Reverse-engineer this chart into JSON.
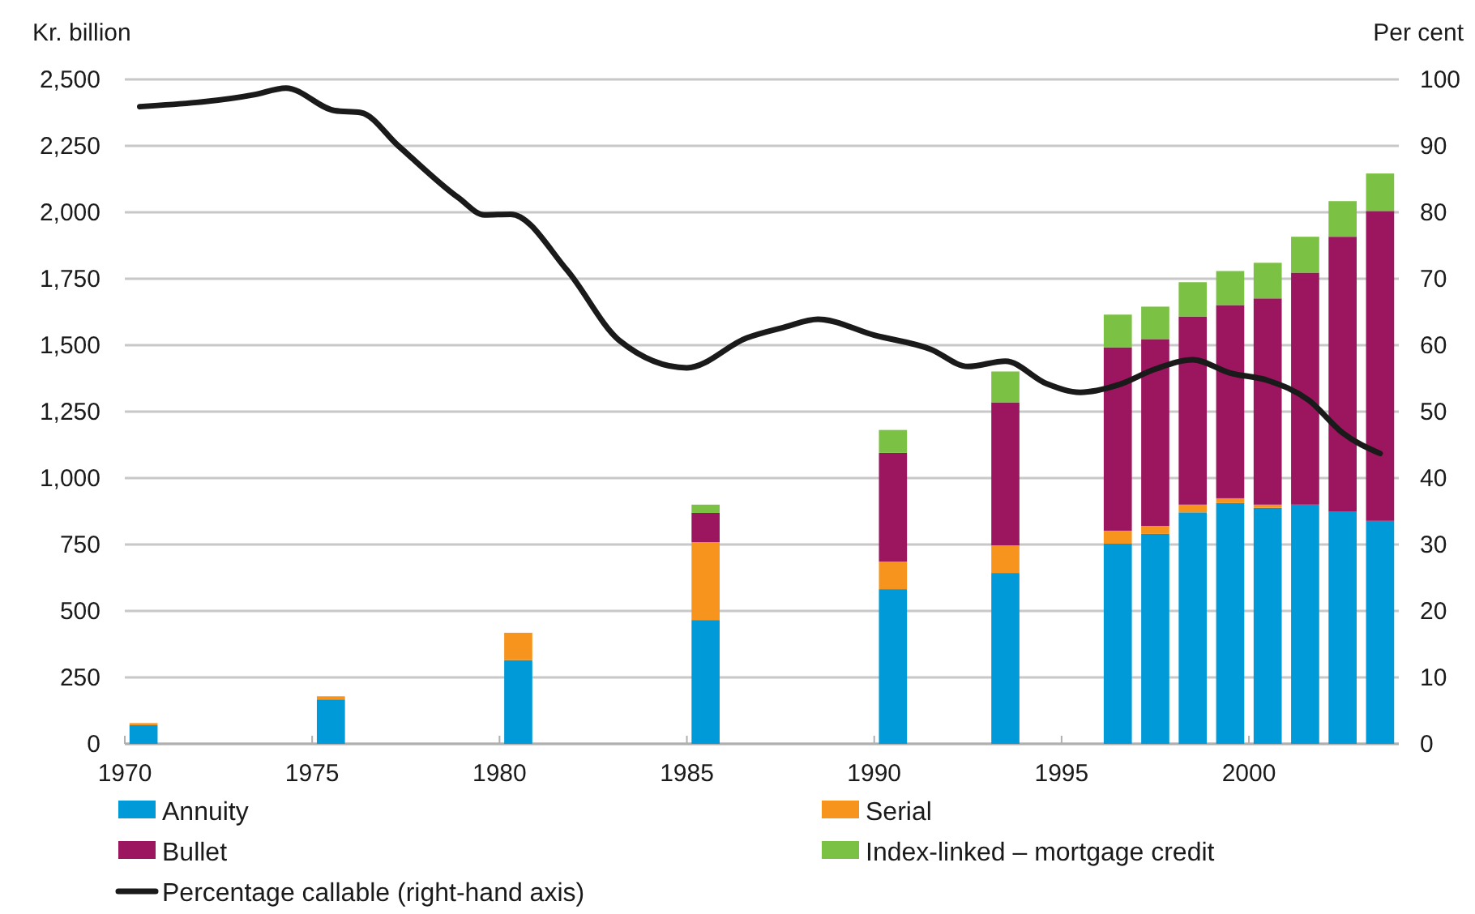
{
  "chart_data": {
    "type": "bar",
    "stacked": true,
    "ylabel": "Kr. billion",
    "y2label": "Per cent",
    "x": [
      1970.5,
      1975.5,
      1980.5,
      1985.5,
      1990.5,
      1993.5,
      1996.5,
      1997.5,
      1998.5,
      1999.5,
      2000.5,
      2001.5,
      2002.5,
      2003.5
    ],
    "series": [
      {
        "name": "Annuity",
        "color": "#009ad8",
        "values": [
          70,
          167,
          315,
          466,
          582,
          643,
          753,
          790,
          871,
          906,
          888,
          900,
          875,
          839
        ]
      },
      {
        "name": "Serial",
        "color": "#f7941d",
        "values": [
          8,
          12,
          103,
          293,
          104,
          104,
          49,
          30,
          29,
          18,
          12,
          0,
          0,
          0
        ]
      },
      {
        "name": "Bullet",
        "color": "#9b165e",
        "values": [
          0,
          0,
          0,
          110,
          409,
          538,
          690,
          703,
          708,
          727,
          776,
          873,
          1033,
          1166
        ]
      },
      {
        "name": "Index-linked – mortgage credit",
        "color": "#7bc143",
        "values": [
          0,
          0,
          0,
          31,
          86,
          116,
          123,
          122,
          129,
          128,
          134,
          135,
          134,
          141
        ]
      },
      {
        "name": "Percentage callable (right-hand axis)",
        "type": "line",
        "axis": "y2",
        "color": "#1a1a1a",
        "x": [
          1970.4,
          1973.45,
          1974.3,
          1975.6,
          1976.3,
          1977.3,
          1978.9,
          1979.6,
          1980.3,
          1981.8,
          1983.2,
          1985.0,
          1986.6,
          1987.6,
          1988.5,
          1990.0,
          1991.5,
          1992.5,
          1993.5,
          1994.6,
          1995.5,
          1996.5,
          1997.5,
          1998.5,
          1999.5,
          2000.5,
          2001.6,
          2002.5,
          2003.5
        ],
        "values": [
          95.9,
          97.7,
          98.7,
          95.3,
          95.0,
          90.0,
          82.2,
          79.6,
          79.7,
          71.3,
          60.7,
          56.6,
          61.1,
          62.7,
          63.9,
          61.5,
          59.4,
          56.8,
          57.6,
          54.2,
          52.9,
          54.0,
          56.4,
          57.8,
          55.8,
          54.7,
          51.7,
          46.8,
          43.7
        ]
      }
    ],
    "xlim": [
      1970,
      2004
    ],
    "xticks": [
      1970,
      1975,
      1980,
      1985,
      1990,
      1995,
      2000
    ],
    "ylim": [
      0,
      2500
    ],
    "yticks": [
      0,
      250,
      500,
      750,
      {
        "value": 1000,
        "label": "1,000"
      },
      {
        "value": 1250,
        "label": "1,250"
      },
      {
        "value": 1500,
        "label": "1,500"
      },
      {
        "value": 1750,
        "label": "1,750"
      },
      {
        "value": 2000,
        "label": "2,000"
      },
      {
        "value": 2250,
        "label": "2,250"
      },
      {
        "value": 2500,
        "label": "2,500"
      }
    ],
    "y2lim": [
      0,
      100
    ],
    "y2ticks": [
      0,
      10,
      20,
      30,
      40,
      50,
      60,
      70,
      80,
      90,
      100
    ],
    "grid": "y",
    "legend": "bottom"
  }
}
